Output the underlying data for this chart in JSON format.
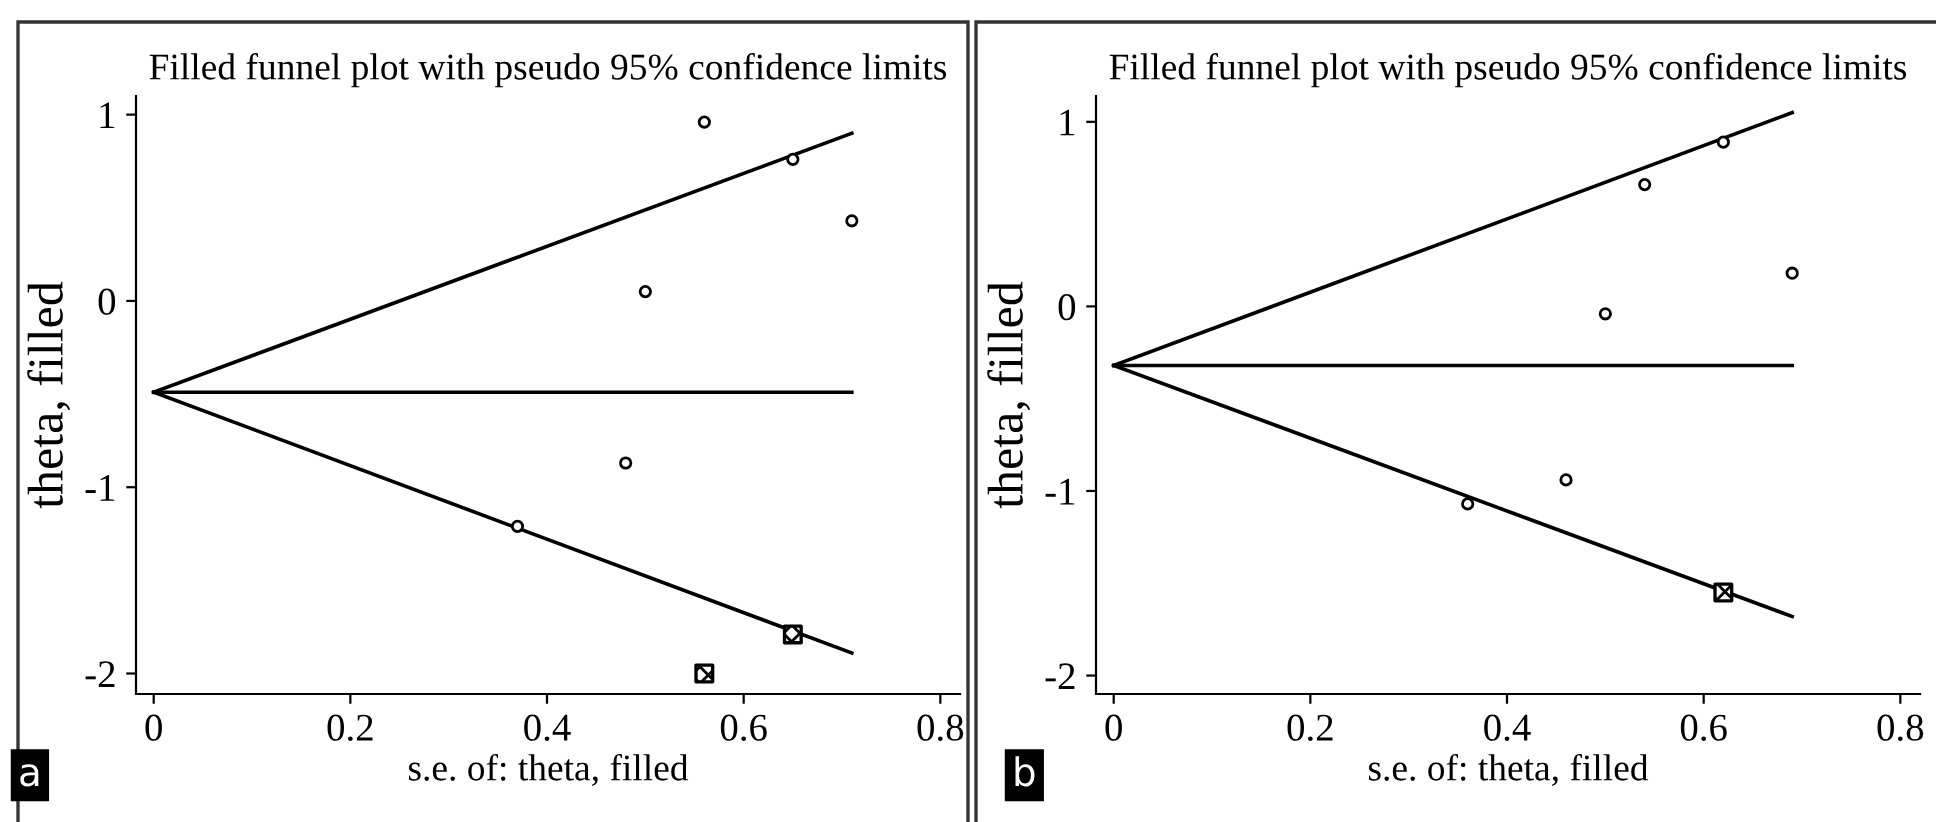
{
  "chart_data": [
    {
      "type": "scatter",
      "title": "Filled funnel plot with pseudo 95% confidence limits",
      "xlabel": "s.e. of: theta, filled",
      "ylabel": "theta, filled",
      "annotations": [
        "a"
      ],
      "xlim": [
        -0.018,
        0.82
      ],
      "ylim": [
        -2.11,
        1.1
      ],
      "xticks": [
        0,
        0.2,
        0.4,
        0.6,
        0.8
      ],
      "yticks": [
        -2,
        -1,
        0,
        1
      ],
      "grid": false,
      "legend": false,
      "series": [
        {
          "type": "line",
          "color": "#000000",
          "x": [
            0,
            0.71
          ],
          "values": [
            -0.49,
            0.9
          ],
          "marker": "none",
          "line_style": "solid"
        },
        {
          "type": "line",
          "color": "#000000",
          "x": [
            0,
            0.71
          ],
          "values": [
            -0.49,
            -0.49
          ],
          "marker": "none",
          "line_style": "solid"
        },
        {
          "type": "line",
          "color": "#000000",
          "x": [
            0,
            0.71
          ],
          "values": [
            -0.49,
            -1.89
          ],
          "marker": "none",
          "line_style": "solid"
        },
        {
          "type": "scatter",
          "color": "#000000",
          "marker": "circle",
          "x": [
            0.56,
            0.65,
            0.71,
            0.5,
            0.48,
            0.37
          ],
          "values": [
            0.96,
            0.76,
            0.43,
            0.05,
            -0.87,
            -1.21
          ]
        },
        {
          "type": "scatter",
          "color": "#000000",
          "marker": "square",
          "x": [
            0.56,
            0.65
          ],
          "values": [
            -2.0,
            -1.79
          ]
        }
      ]
    },
    {
      "type": "scatter",
      "title": "Filled funnel plot with pseudo 95% confidence limits",
      "xlabel": "s.e. of: theta, filled",
      "ylabel": "theta, filled",
      "annotations": [
        "b"
      ],
      "xlim": [
        -0.018,
        0.82
      ],
      "ylim": [
        -2.1,
        1.14
      ],
      "xticks": [
        0,
        0.2,
        0.4,
        0.6,
        0.8
      ],
      "yticks": [
        -2,
        -1,
        0,
        1
      ],
      "grid": false,
      "legend": false,
      "series": [
        {
          "type": "line",
          "color": "#000000",
          "x": [
            0,
            0.69
          ],
          "values": [
            -0.32,
            1.05
          ],
          "marker": "none",
          "line_style": "solid"
        },
        {
          "type": "line",
          "color": "#000000",
          "x": [
            0,
            0.69
          ],
          "values": [
            -0.32,
            -0.32
          ],
          "marker": "none",
          "line_style": "solid"
        },
        {
          "type": "line",
          "color": "#000000",
          "x": [
            0,
            0.69
          ],
          "values": [
            -0.32,
            -1.68
          ],
          "marker": "none",
          "line_style": "solid"
        },
        {
          "type": "scatter",
          "color": "#000000",
          "marker": "circle",
          "x": [
            0.62,
            0.54,
            0.69,
            0.5,
            0.46,
            0.36
          ],
          "values": [
            0.89,
            0.66,
            0.18,
            -0.04,
            -0.94,
            -1.07
          ]
        },
        {
          "type": "scatter",
          "color": "#000000",
          "marker": "square",
          "x": [
            0.62
          ],
          "values": [
            -1.55
          ]
        }
      ]
    }
  ]
}
